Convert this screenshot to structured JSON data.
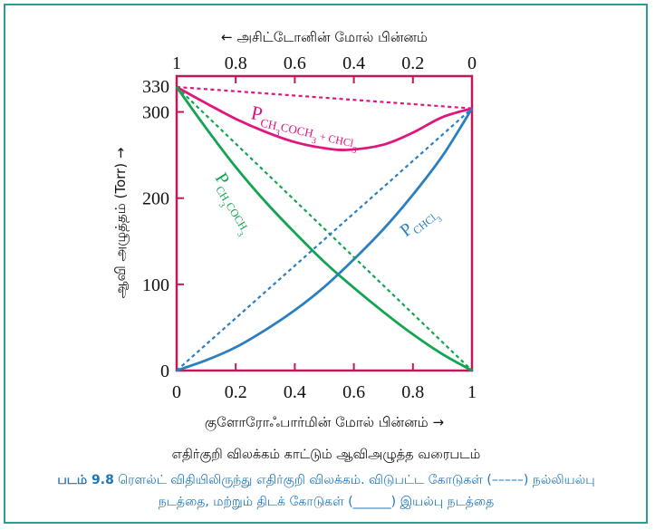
{
  "chart_data": {
    "type": "line",
    "title": "எதிர்குறி விலக்கம் காட்டும் ஆவிஅழுத்த வரைபடம்",
    "xlabel": "குளோரோஃபார்மின் மோல் பின்னம் →",
    "x2label": "← அசிட்டோனின் மோல் பின்னம்",
    "ylabel": "ஆவி அழுத்தம் (Torr) →",
    "xlim": [
      0,
      1
    ],
    "ylim": [
      0,
      330
    ],
    "xticks": [
      "0",
      "0.2",
      "0.4",
      "0.6",
      "0.8",
      "1"
    ],
    "x2ticks": [
      "1",
      "0.8",
      "0.6",
      "0.4",
      "0.2",
      "0"
    ],
    "yticks": [
      {
        "value": 0,
        "label": "0"
      },
      {
        "value": 100,
        "label": "100"
      },
      {
        "value": 200,
        "label": "200"
      },
      {
        "value": 300,
        "label": "300"
      },
      {
        "value": 330,
        "label": "330"
      }
    ],
    "series": [
      {
        "name": "P CH3COCH3 + CHCl3",
        "style": "solid",
        "color": "#e0157e",
        "x": [
          0,
          0.1,
          0.2,
          0.3,
          0.4,
          0.5,
          0.58,
          0.7,
          0.8,
          0.9,
          1.0
        ],
        "y": [
          329,
          310,
          292,
          277,
          265,
          258,
          256,
          262,
          276,
          294,
          304
        ]
      },
      {
        "name": "P CH3COCH3",
        "style": "solid",
        "color": "#12a551",
        "x": [
          0,
          0.1,
          0.2,
          0.3,
          0.4,
          0.5,
          0.6,
          0.7,
          0.8,
          0.9,
          1.0
        ],
        "y": [
          329,
          281,
          236,
          196,
          160,
          126,
          96,
          68,
          42,
          19,
          0
        ]
      },
      {
        "name": "P CHCl3",
        "style": "solid",
        "color": "#2a7fc1",
        "x": [
          0,
          0.1,
          0.2,
          0.3,
          0.4,
          0.5,
          0.6,
          0.7,
          0.8,
          0.9,
          1.0
        ],
        "y": [
          0,
          12,
          27,
          47,
          70,
          97,
          129,
          164,
          204,
          249,
          304
        ]
      },
      {
        "name": "ideal total",
        "style": "dashed",
        "color": "#e0157e",
        "x": [
          0,
          1
        ],
        "y": [
          329,
          304
        ]
      },
      {
        "name": "ideal acetone",
        "style": "dashed",
        "color": "#12a551",
        "x": [
          0,
          1
        ],
        "y": [
          329,
          0
        ]
      },
      {
        "name": "ideal chloroform",
        "style": "dashed",
        "color": "#2a7fc1",
        "x": [
          0,
          1
        ],
        "y": [
          0,
          304
        ]
      }
    ]
  },
  "caption": {
    "number": "படம் 9.8",
    "line1": " ரௌல்ட் விதியிலிருந்து எதிர்குறி விலக்கம். விடுபட்ட கோடுகள் (–––––) நல்லியல்பு",
    "line2": "நடத்தை, மற்றும் திடக் கோடுகள் (______) இயல்பு நடத்தை"
  },
  "labels": {
    "total_P": "P",
    "total_sub": "CH",
    "total_sub2": "3",
    "total_sub3": "COCH",
    "total_sub4": "3",
    "total_sub5": " + CHCl",
    "total_sub6": "3",
    "acetone_P": "P",
    "acetone_sub": "CH",
    "acetone_sub2": "3",
    "acetone_sub3": "COCH",
    "acetone_sub4": "3",
    "chcl3_P": "P",
    "chcl3_sub": "CHCl",
    "chcl3_sub2": "3"
  },
  "colors": {
    "frame": "#c2185b",
    "pink": "#e0157e",
    "green": "#12a551",
    "blue": "#2a7fc1",
    "border": "#2a9d8f",
    "caption": "#1b75bb"
  }
}
